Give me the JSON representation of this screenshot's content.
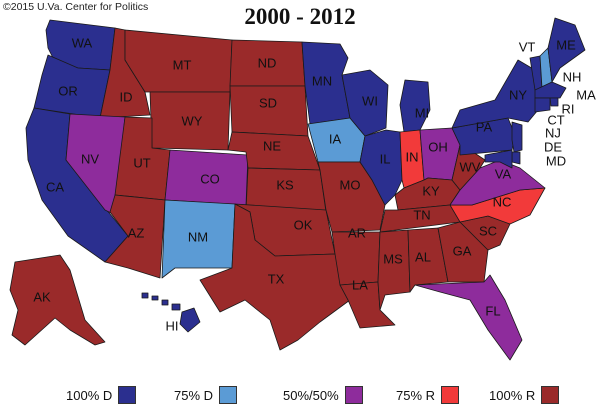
{
  "credit": "©2015 U.Va. Center for Politics",
  "title": "2000 - 2012",
  "colors": {
    "d100": "#2b2f8f",
    "d75": "#5b9bd5",
    "split": "#8e2c9c",
    "r75": "#f23a3a",
    "r100": "#9a2a2a"
  },
  "legend": [
    {
      "label": "100% D",
      "category": "d100"
    },
    {
      "label": "75% D",
      "category": "d75"
    },
    {
      "label": "50%/50%",
      "category": "split"
    },
    {
      "label": "75% R",
      "category": "r75"
    },
    {
      "label": "100% R",
      "category": "r100"
    }
  ],
  "states": {
    "WA": {
      "label": "WA",
      "category": "d100"
    },
    "OR": {
      "label": "OR",
      "category": "d100"
    },
    "CA": {
      "label": "CA",
      "category": "d100"
    },
    "ID": {
      "label": "ID",
      "category": "r100"
    },
    "NV": {
      "label": "NV",
      "category": "split"
    },
    "MT": {
      "label": "MT",
      "category": "r100"
    },
    "WY": {
      "label": "WY",
      "category": "r100"
    },
    "UT": {
      "label": "UT",
      "category": "r100"
    },
    "AZ": {
      "label": "AZ",
      "category": "r100"
    },
    "CO": {
      "label": "CO",
      "category": "split"
    },
    "NM": {
      "label": "NM",
      "category": "d75"
    },
    "ND": {
      "label": "ND",
      "category": "r100"
    },
    "SD": {
      "label": "SD",
      "category": "r100"
    },
    "NE": {
      "label": "NE",
      "category": "r100"
    },
    "KS": {
      "label": "KS",
      "category": "r100"
    },
    "OK": {
      "label": "OK",
      "category": "r100"
    },
    "TX": {
      "label": "TX",
      "category": "r100"
    },
    "MN": {
      "label": "MN",
      "category": "d100"
    },
    "IA": {
      "label": "IA",
      "category": "d75"
    },
    "MO": {
      "label": "MO",
      "category": "r100"
    },
    "AR": {
      "label": "AR",
      "category": "r100"
    },
    "LA": {
      "label": "LA",
      "category": "r100"
    },
    "WI": {
      "label": "WI",
      "category": "d100"
    },
    "IL": {
      "label": "IL",
      "category": "d100"
    },
    "MI": {
      "label": "MI",
      "category": "d100"
    },
    "IN": {
      "label": "IN",
      "category": "r75"
    },
    "OH": {
      "label": "OH",
      "category": "split"
    },
    "KY": {
      "label": "KY",
      "category": "r100"
    },
    "TN": {
      "label": "TN",
      "category": "r100"
    },
    "MS": {
      "label": "MS",
      "category": "r100"
    },
    "AL": {
      "label": "AL",
      "category": "r100"
    },
    "GA": {
      "label": "GA",
      "category": "r100"
    },
    "FL": {
      "label": "FL",
      "category": "split"
    },
    "SC": {
      "label": "SC",
      "category": "r100"
    },
    "NC": {
      "label": "NC",
      "category": "r75"
    },
    "VA": {
      "label": "VA",
      "category": "split"
    },
    "WV": {
      "label": "WV",
      "category": "r100"
    },
    "PA": {
      "label": "PA",
      "category": "d100"
    },
    "NY": {
      "label": "NY",
      "category": "d100"
    },
    "VT": {
      "label": "VT",
      "category": "d100"
    },
    "NH": {
      "label": "NH",
      "category": "d75"
    },
    "ME": {
      "label": "ME",
      "category": "d100"
    },
    "MA": {
      "label": "MA",
      "category": "d100"
    },
    "RI": {
      "label": "RI",
      "category": "d100"
    },
    "CT": {
      "label": "CT",
      "category": "d100"
    },
    "NJ": {
      "label": "NJ",
      "category": "d100"
    },
    "DE": {
      "label": "DE",
      "category": "d100"
    },
    "MD": {
      "label": "MD",
      "category": "d100"
    },
    "AK": {
      "label": "AK",
      "category": "r100"
    },
    "HI": {
      "label": "HI",
      "category": "d100"
    }
  }
}
